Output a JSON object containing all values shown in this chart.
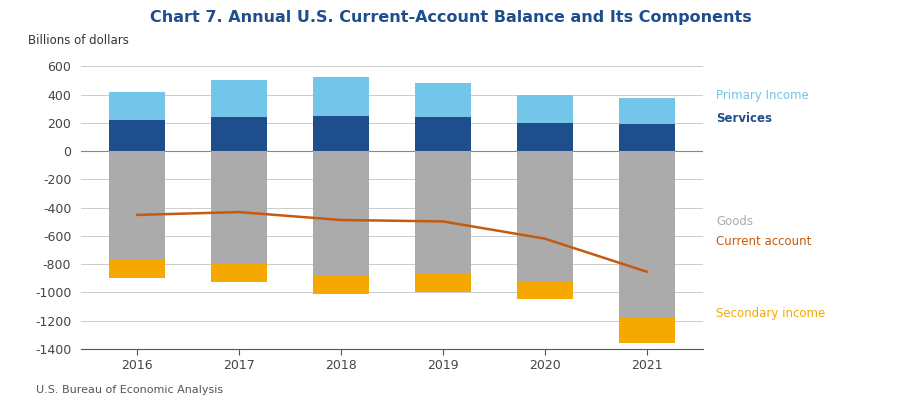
{
  "title": "Chart 7. Annual U.S. Current-Account Balance and Its Components",
  "ylabel": "Billions of dollars",
  "source": "U.S. Bureau of Economic Analysis",
  "years": [
    2016,
    2017,
    2018,
    2019,
    2020,
    2021
  ],
  "services": [
    220,
    240,
    250,
    240,
    200,
    190
  ],
  "primary_income": [
    200,
    265,
    275,
    245,
    195,
    185
  ],
  "goods": [
    -770,
    -800,
    -880,
    -870,
    -920,
    -1185
  ],
  "secondary_income": [
    -130,
    -130,
    -130,
    -130,
    -130,
    -175
  ],
  "current_account": [
    -452,
    -432,
    -488,
    -498,
    -620,
    -854
  ],
  "color_primary": "#73C6E7",
  "color_services": "#1F4E8C",
  "color_goods": "#ABABAB",
  "color_secondary": "#F5A800",
  "color_current": "#C55A11",
  "title_color": "#1F4E8C",
  "ylim": [
    -1400,
    700
  ],
  "yticks": [
    -1400,
    -1200,
    -1000,
    -800,
    -600,
    -400,
    -200,
    0,
    200,
    400,
    600
  ],
  "bar_width": 0.55
}
